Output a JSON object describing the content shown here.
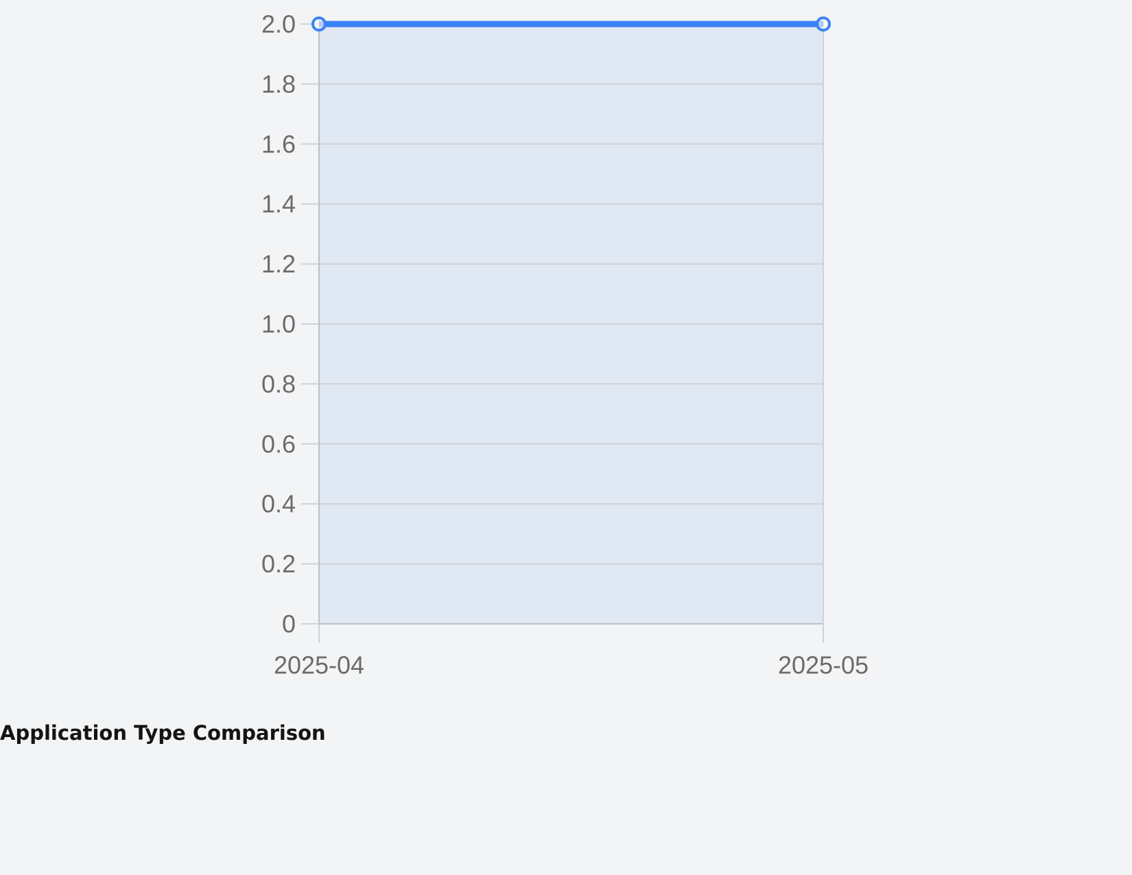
{
  "section_heading": "Application Type Comparison",
  "chart_data": {
    "type": "area",
    "categories": [
      "2025-04",
      "2025-05"
    ],
    "series": [
      {
        "values": [
          2,
          2
        ]
      }
    ],
    "y_ticks": [
      "0",
      "0.2",
      "0.4",
      "0.6",
      "0.8",
      "1.0",
      "1.2",
      "1.4",
      "1.6",
      "1.8",
      "2.0"
    ],
    "ylim": [
      0,
      2
    ],
    "grid": true,
    "colors": {
      "line": "#3b82f6",
      "fill": "#e0e8f4",
      "grid": "#cdd2da",
      "axis": "#bcc1ca",
      "tick_text": "#6b6b6b"
    }
  }
}
